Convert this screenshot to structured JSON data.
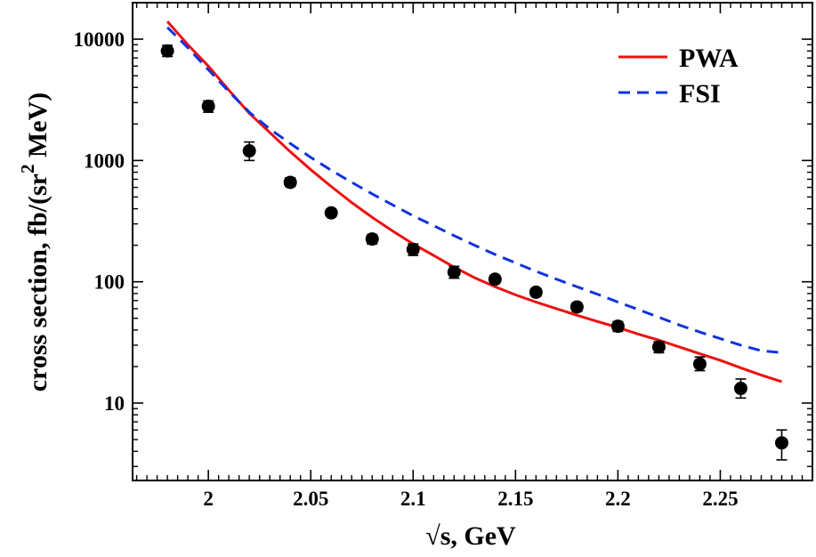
{
  "chart_data": {
    "type": "line",
    "yscale": "log",
    "xlim": [
      1.963,
      2.295
    ],
    "ylim": [
      2.3,
      20000
    ],
    "xlabel": "√s, GeV",
    "ylabel": {
      "prefix": "cross section, fb/(sr",
      "superscript": "2",
      "suffix": " MeV)"
    },
    "x_ticks": [
      {
        "value": 2.0,
        "label": "2"
      },
      {
        "value": 2.05,
        "label": "2.05"
      },
      {
        "value": 2.1,
        "label": "2.1"
      },
      {
        "value": 2.15,
        "label": "2.15"
      },
      {
        "value": 2.2,
        "label": "2.2"
      },
      {
        "value": 2.25,
        "label": "2.25"
      }
    ],
    "y_ticks": [
      {
        "value": 10,
        "label": "10"
      },
      {
        "value": 100,
        "label": "100"
      },
      {
        "value": 1000,
        "label": "1000"
      },
      {
        "value": 10000,
        "label": "10000"
      }
    ],
    "legend": [
      {
        "name": "PWA",
        "color": "#ee1111",
        "style": "solid"
      },
      {
        "name": "FSI",
        "color": "#1133dd",
        "style": "dashed"
      }
    ],
    "series": [
      {
        "name": "PWA",
        "color": "#ee1111",
        "style": "solid",
        "x": [
          1.98,
          1.99,
          2.0,
          2.01,
          2.02,
          2.03,
          2.04,
          2.05,
          2.06,
          2.07,
          2.08,
          2.09,
          2.1,
          2.11,
          2.12,
          2.13,
          2.14,
          2.15,
          2.16,
          2.17,
          2.18,
          2.19,
          2.2,
          2.21,
          2.22,
          2.23,
          2.24,
          2.25,
          2.26,
          2.27,
          2.28
        ],
        "y": [
          14000,
          9000,
          6000,
          3800,
          2450,
          1700,
          1180,
          840,
          610,
          450,
          340,
          262,
          205,
          165,
          132,
          108,
          91,
          78,
          68,
          60,
          53,
          47,
          42,
          37,
          33,
          29,
          25.5,
          22.5,
          19.5,
          17,
          15
        ]
      },
      {
        "name": "FSI",
        "color": "#1133dd",
        "style": "dashed",
        "x": [
          1.98,
          1.99,
          2.0,
          2.01,
          2.02,
          2.03,
          2.04,
          2.05,
          2.06,
          2.07,
          2.08,
          2.09,
          2.1,
          2.11,
          2.12,
          2.13,
          2.14,
          2.15,
          2.16,
          2.17,
          2.18,
          2.19,
          2.2,
          2.21,
          2.22,
          2.23,
          2.24,
          2.25,
          2.26,
          2.27,
          2.28
        ],
        "y": [
          12500,
          8500,
          5600,
          3700,
          2500,
          1820,
          1380,
          1060,
          830,
          660,
          530,
          430,
          350,
          290,
          240,
          200,
          168,
          143,
          122,
          105,
          91,
          79,
          68,
          59,
          51,
          44,
          38.5,
          34,
          30,
          27,
          26
        ]
      },
      {
        "name": "data",
        "type": "scatter",
        "color": "#000000",
        "points": [
          {
            "x": 1.98,
            "y": 8000,
            "yerr_low": 7200,
            "yerr_high": 8900
          },
          {
            "x": 2.0,
            "y": 2800,
            "yerr_low": 2500,
            "yerr_high": 3100
          },
          {
            "x": 2.02,
            "y": 1200,
            "yerr_low": 1000,
            "yerr_high": 1420
          },
          {
            "x": 2.04,
            "y": 660,
            "yerr_low": 610,
            "yerr_high": 720
          },
          {
            "x": 2.06,
            "y": 370,
            "yerr_low": 345,
            "yerr_high": 395
          },
          {
            "x": 2.08,
            "y": 225,
            "yerr_low": 205,
            "yerr_high": 245
          },
          {
            "x": 2.1,
            "y": 185,
            "yerr_low": 165,
            "yerr_high": 205
          },
          {
            "x": 2.12,
            "y": 120,
            "yerr_low": 107,
            "yerr_high": 134
          },
          {
            "x": 2.14,
            "y": 105,
            "yerr_low": 97,
            "yerr_high": 113
          },
          {
            "x": 2.16,
            "y": 82,
            "yerr_low": 76,
            "yerr_high": 88
          },
          {
            "x": 2.18,
            "y": 62,
            "yerr_low": 57,
            "yerr_high": 67
          },
          {
            "x": 2.2,
            "y": 43,
            "yerr_low": 39,
            "yerr_high": 47
          },
          {
            "x": 2.22,
            "y": 29,
            "yerr_low": 26,
            "yerr_high": 32
          },
          {
            "x": 2.24,
            "y": 21,
            "yerr_low": 18.5,
            "yerr_high": 24
          },
          {
            "x": 2.26,
            "y": 13.2,
            "yerr_low": 11,
            "yerr_high": 15.8
          },
          {
            "x": 2.28,
            "y": 4.7,
            "yerr_low": 3.4,
            "yerr_high": 6.0
          }
        ]
      }
    ]
  }
}
